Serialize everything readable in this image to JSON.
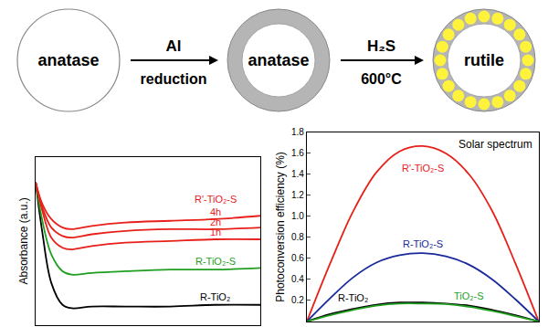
{
  "diagram": {
    "stages": [
      {
        "label": "anatase",
        "shell": false,
        "dots": false
      },
      {
        "label": "anatase",
        "shell": true,
        "dots": false
      },
      {
        "label": "rutile",
        "shell": true,
        "dots": true
      }
    ],
    "steps": [
      {
        "above": "Al",
        "below": "reduction"
      },
      {
        "above": "H₂S",
        "below": "600°C"
      }
    ]
  },
  "chart_data": [
    {
      "type": "line",
      "y_label": "Absorbance (a.u.)",
      "x": [
        0,
        0.3,
        0.7,
        1.2,
        1.6,
        2.5,
        4,
        6,
        8,
        10
      ],
      "xlim": [
        0,
        10
      ],
      "ylim": [
        0,
        1
      ],
      "xticks": [],
      "yticks": [],
      "tick_labels": false,
      "series": [
        {
          "name": "R-TiO₂",
          "color": "#000000",
          "values": [
            0.85,
            0.55,
            0.25,
            0.12,
            0.1,
            0.11,
            0.11,
            0.11,
            0.12,
            0.12
          ]
        },
        {
          "name": "R-TiO₂-S",
          "color": "#1f9e1f",
          "values": [
            0.85,
            0.62,
            0.42,
            0.32,
            0.3,
            0.31,
            0.32,
            0.33,
            0.33,
            0.34
          ]
        },
        {
          "name": "1h",
          "color": "#e8201a",
          "values": [
            0.85,
            0.68,
            0.52,
            0.46,
            0.45,
            0.47,
            0.49,
            0.5,
            0.51,
            0.51
          ]
        },
        {
          "name": "2h",
          "color": "#e8201a",
          "values": [
            0.85,
            0.7,
            0.58,
            0.53,
            0.52,
            0.54,
            0.56,
            0.57,
            0.57,
            0.58
          ]
        },
        {
          "name": "4h",
          "color": "#e8201a",
          "values": [
            0.85,
            0.72,
            0.63,
            0.58,
            0.57,
            0.59,
            0.61,
            0.62,
            0.63,
            0.65
          ]
        }
      ],
      "annotations": [
        {
          "text": "R'-TiO₂-S",
          "color": "#e8201a"
        }
      ]
    },
    {
      "type": "line",
      "title": "Solar spectrum",
      "y_label": "Photoconversion efficiency (%)",
      "x": [
        0,
        1,
        2,
        3,
        4,
        5,
        6,
        7,
        8,
        9,
        10
      ],
      "xlim": [
        0,
        10
      ],
      "ylim": [
        0,
        1.8
      ],
      "xticks": [],
      "yticks": [
        0.2,
        0.4,
        0.6,
        0.8,
        {
          "value": 1,
          "label": "1.0"
        },
        1.2,
        1.4,
        1.6,
        1.8
      ],
      "tick_labels": "y",
      "series": [
        {
          "name": "R'-TiO₂-S",
          "color": "#e8201a",
          "values": [
            0,
            0.55,
            1.05,
            1.42,
            1.62,
            1.67,
            1.6,
            1.4,
            1.05,
            0.55,
            0
          ]
        },
        {
          "name": "R-TiO₂-S",
          "color": "#1a2a9a",
          "values": [
            0,
            0.22,
            0.42,
            0.56,
            0.63,
            0.65,
            0.62,
            0.54,
            0.4,
            0.21,
            0
          ]
        },
        {
          "name": "R-TiO₂",
          "color": "#000000",
          "values": [
            0,
            0.07,
            0.12,
            0.16,
            0.18,
            0.18,
            0.17,
            0.15,
            0.11,
            0.06,
            0
          ]
        },
        {
          "name": "TiO₂-S",
          "color": "#1f9e1f",
          "values": [
            0,
            0.06,
            0.11,
            0.15,
            0.17,
            0.17,
            0.165,
            0.14,
            0.1,
            0.05,
            0
          ]
        }
      ]
    }
  ]
}
